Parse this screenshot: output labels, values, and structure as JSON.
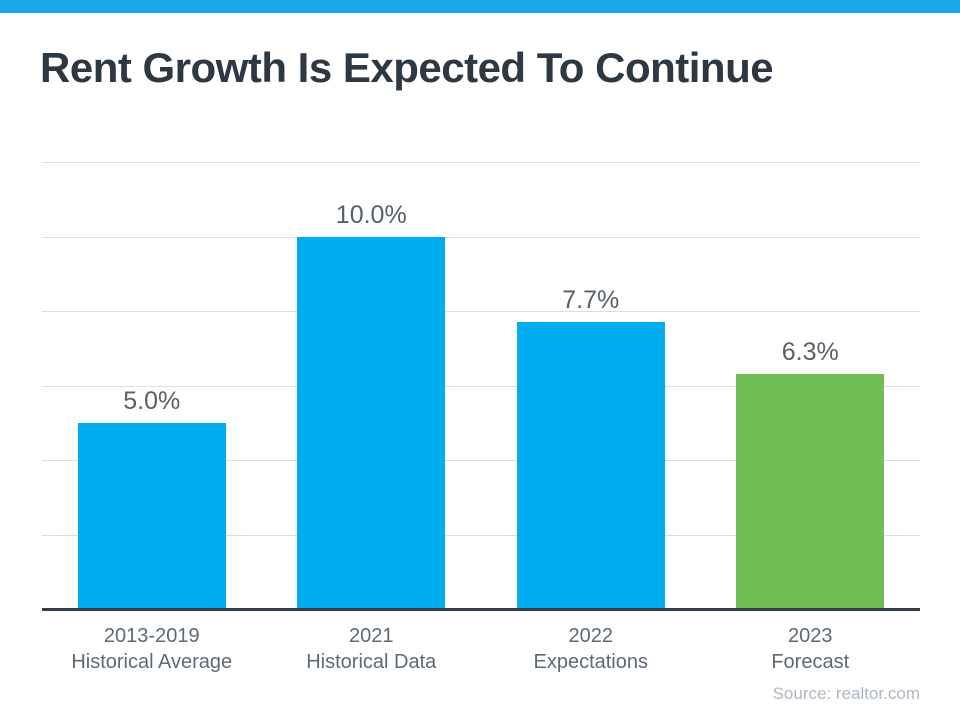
{
  "page": {
    "title": "Rent Growth Is Expected To Continue",
    "source_note": "Source: realtor.com"
  },
  "colors": {
    "accent_strip": "#17a9ea",
    "bar_blue": "#00aeef",
    "bar_green": "#70bf55",
    "title_text": "#2d3842",
    "value_label_text": "#566069",
    "category_label_text": "#5c6a77",
    "gridline": "#dcdcdc",
    "axis_line": "#333d47",
    "source_text": "#aeb8c2"
  },
  "chart_data": {
    "type": "bar",
    "title": "Rent Growth Is Expected To Continue",
    "categories": [
      "2013-2019 Historical Average",
      "2021 Historical Data",
      "2022 Expectations",
      "2023 Forecast"
    ],
    "category_lines": [
      [
        "2013-2019",
        "Historical Average"
      ],
      [
        "2021",
        "Historical Data"
      ],
      [
        "2022",
        "Expectations"
      ],
      [
        "2023",
        "Forecast"
      ]
    ],
    "values": [
      5.0,
      10.0,
      7.7,
      6.3
    ],
    "value_labels": [
      "5.0%",
      "10.0%",
      "7.7%",
      "6.3%"
    ],
    "bar_colors": [
      "#00aeef",
      "#00aeef",
      "#00aeef",
      "#70bf55"
    ],
    "xlabel": "",
    "ylabel": "",
    "ylim": [
      0,
      12
    ],
    "gridline_step": 2,
    "grid": true,
    "legend": false,
    "source": "Source: realtor.com"
  }
}
